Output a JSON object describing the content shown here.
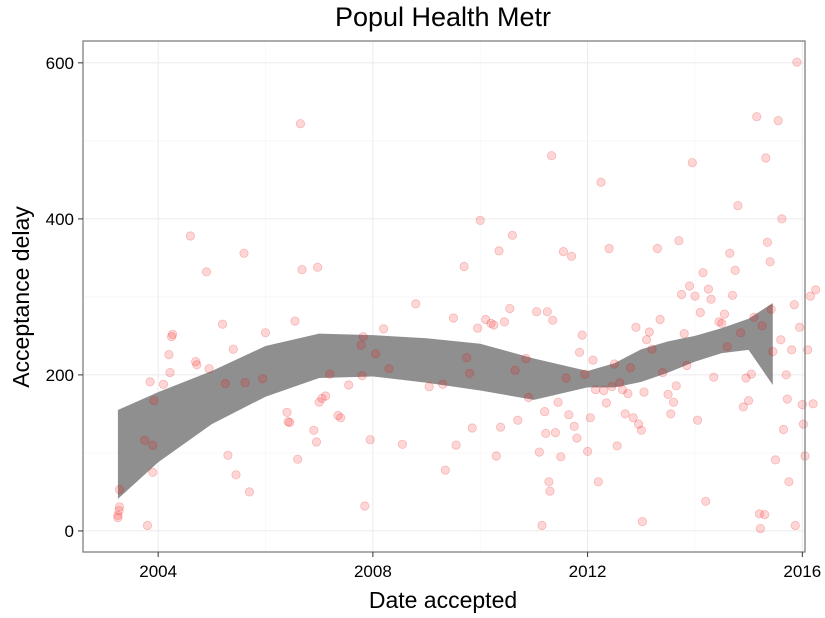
{
  "chart_data": {
    "type": "scatter",
    "title": "Popul Health Metr",
    "xlabel": "Date accepted",
    "ylabel": "Acceptance delay",
    "xlim": [
      2002.6,
      2016.05
    ],
    "ylim": [
      -27,
      628
    ],
    "x_ticks": [
      2004,
      2008,
      2012,
      2016
    ],
    "y_ticks": [
      0,
      200,
      400,
      600
    ],
    "grid": true,
    "legend": "none",
    "colors": {
      "point": "#ff0000",
      "band": "#8f8f8f",
      "border": "#7f7f7f"
    },
    "points": [
      [
        2003.25,
        17
      ],
      [
        2003.25,
        20
      ],
      [
        2003.27,
        26
      ],
      [
        2003.28,
        31
      ],
      [
        2003.28,
        53
      ],
      [
        2003.75,
        116
      ],
      [
        2003.8,
        7
      ],
      [
        2003.85,
        191
      ],
      [
        2003.9,
        110
      ],
      [
        2003.9,
        75
      ],
      [
        2003.92,
        167
      ],
      [
        2004.1,
        188
      ],
      [
        2004.2,
        226
      ],
      [
        2004.22,
        203
      ],
      [
        2004.25,
        249
      ],
      [
        2004.27,
        252
      ],
      [
        2004.6,
        378
      ],
      [
        2004.7,
        217
      ],
      [
        2004.72,
        213
      ],
      [
        2004.9,
        332
      ],
      [
        2004.95,
        208
      ],
      [
        2005.2,
        265
      ],
      [
        2005.25,
        189
      ],
      [
        2005.3,
        97
      ],
      [
        2005.4,
        233
      ],
      [
        2005.45,
        72
      ],
      [
        2005.6,
        356
      ],
      [
        2005.62,
        190
      ],
      [
        2005.7,
        50
      ],
      [
        2005.95,
        195
      ],
      [
        2006.0,
        254
      ],
      [
        2006.4,
        152
      ],
      [
        2006.42,
        140
      ],
      [
        2006.45,
        139
      ],
      [
        2006.55,
        269
      ],
      [
        2006.6,
        92
      ],
      [
        2006.65,
        522
      ],
      [
        2006.68,
        335
      ],
      [
        2006.9,
        129
      ],
      [
        2006.95,
        114
      ],
      [
        2006.97,
        338
      ],
      [
        2007.0,
        165
      ],
      [
        2007.05,
        170
      ],
      [
        2007.12,
        173
      ],
      [
        2007.2,
        201
      ],
      [
        2007.35,
        148
      ],
      [
        2007.4,
        145
      ],
      [
        2007.55,
        187
      ],
      [
        2007.78,
        238
      ],
      [
        2007.8,
        199
      ],
      [
        2007.82,
        249
      ],
      [
        2007.85,
        32
      ],
      [
        2007.95,
        117
      ],
      [
        2008.05,
        227
      ],
      [
        2008.2,
        259
      ],
      [
        2008.3,
        208
      ],
      [
        2008.55,
        111
      ],
      [
        2008.8,
        291
      ],
      [
        2009.05,
        185
      ],
      [
        2009.3,
        188
      ],
      [
        2009.35,
        78
      ],
      [
        2009.5,
        273
      ],
      [
        2009.55,
        110
      ],
      [
        2009.7,
        339
      ],
      [
        2009.75,
        222
      ],
      [
        2009.8,
        202
      ],
      [
        2009.85,
        132
      ],
      [
        2009.95,
        260
      ],
      [
        2010.0,
        398
      ],
      [
        2010.1,
        271
      ],
      [
        2010.2,
        266
      ],
      [
        2010.25,
        264
      ],
      [
        2010.3,
        96
      ],
      [
        2010.35,
        359
      ],
      [
        2010.38,
        133
      ],
      [
        2010.45,
        268
      ],
      [
        2010.55,
        285
      ],
      [
        2010.6,
        379
      ],
      [
        2010.65,
        206
      ],
      [
        2010.7,
        142
      ],
      [
        2010.85,
        221
      ],
      [
        2010.9,
        171
      ],
      [
        2011.05,
        281
      ],
      [
        2011.1,
        101
      ],
      [
        2011.15,
        7
      ],
      [
        2011.2,
        153
      ],
      [
        2011.22,
        125
      ],
      [
        2011.25,
        281
      ],
      [
        2011.28,
        63
      ],
      [
        2011.3,
        51
      ],
      [
        2011.33,
        481
      ],
      [
        2011.35,
        270
      ],
      [
        2011.4,
        126
      ],
      [
        2011.45,
        165
      ],
      [
        2011.5,
        95
      ],
      [
        2011.55,
        358
      ],
      [
        2011.6,
        196
      ],
      [
        2011.65,
        149
      ],
      [
        2011.7,
        352
      ],
      [
        2011.75,
        134
      ],
      [
        2011.8,
        119
      ],
      [
        2011.85,
        229
      ],
      [
        2011.9,
        251
      ],
      [
        2011.95,
        201
      ],
      [
        2012.0,
        102
      ],
      [
        2012.05,
        145
      ],
      [
        2012.1,
        219
      ],
      [
        2012.15,
        181
      ],
      [
        2012.2,
        63
      ],
      [
        2012.25,
        447
      ],
      [
        2012.3,
        180
      ],
      [
        2012.35,
        164
      ],
      [
        2012.4,
        362
      ],
      [
        2012.45,
        185
      ],
      [
        2012.5,
        214
      ],
      [
        2012.55,
        109
      ],
      [
        2012.6,
        190
      ],
      [
        2012.65,
        181
      ],
      [
        2012.7,
        150
      ],
      [
        2012.75,
        176
      ],
      [
        2012.8,
        209
      ],
      [
        2012.85,
        145
      ],
      [
        2012.9,
        261
      ],
      [
        2012.95,
        137
      ],
      [
        2013.0,
        129
      ],
      [
        2013.02,
        12
      ],
      [
        2013.05,
        178
      ],
      [
        2013.1,
        245
      ],
      [
        2013.15,
        255
      ],
      [
        2013.2,
        233
      ],
      [
        2013.3,
        362
      ],
      [
        2013.35,
        271
      ],
      [
        2013.4,
        203
      ],
      [
        2013.5,
        175
      ],
      [
        2013.55,
        150
      ],
      [
        2013.6,
        165
      ],
      [
        2013.65,
        186
      ],
      [
        2013.7,
        372
      ],
      [
        2013.75,
        303
      ],
      [
        2013.8,
        253
      ],
      [
        2013.85,
        212
      ],
      [
        2013.9,
        314
      ],
      [
        2013.95,
        472
      ],
      [
        2014.0,
        301
      ],
      [
        2014.05,
        142
      ],
      [
        2014.1,
        280
      ],
      [
        2014.15,
        331
      ],
      [
        2014.2,
        38
      ],
      [
        2014.25,
        310
      ],
      [
        2014.3,
        297
      ],
      [
        2014.35,
        197
      ],
      [
        2014.45,
        268
      ],
      [
        2014.5,
        266
      ],
      [
        2014.55,
        278
      ],
      [
        2014.6,
        236
      ],
      [
        2014.65,
        356
      ],
      [
        2014.7,
        302
      ],
      [
        2014.75,
        334
      ],
      [
        2014.8,
        417
      ],
      [
        2014.85,
        254
      ],
      [
        2014.9,
        159
      ],
      [
        2014.95,
        196
      ],
      [
        2015.0,
        167
      ],
      [
        2015.05,
        201
      ],
      [
        2015.1,
        274
      ],
      [
        2015.15,
        531
      ],
      [
        2015.2,
        22
      ],
      [
        2015.22,
        3
      ],
      [
        2015.25,
        263
      ],
      [
        2015.3,
        21
      ],
      [
        2015.32,
        478
      ],
      [
        2015.35,
        370
      ],
      [
        2015.4,
        345
      ],
      [
        2015.42,
        284
      ],
      [
        2015.45,
        230
      ],
      [
        2015.5,
        91
      ],
      [
        2015.55,
        526
      ],
      [
        2015.6,
        245
      ],
      [
        2015.62,
        400
      ],
      [
        2015.65,
        130
      ],
      [
        2015.7,
        200
      ],
      [
        2015.72,
        169
      ],
      [
        2015.75,
        63
      ],
      [
        2015.8,
        232
      ],
      [
        2015.85,
        290
      ],
      [
        2015.87,
        7
      ],
      [
        2015.9,
        601
      ],
      [
        2015.95,
        261
      ],
      [
        2016.0,
        162
      ],
      [
        2016.02,
        137
      ],
      [
        2016.05,
        96
      ],
      [
        2016.1,
        232
      ],
      [
        2016.15,
        301
      ],
      [
        2016.2,
        163
      ],
      [
        2016.25,
        309
      ]
    ],
    "smooth_band": {
      "x": [
        2003.25,
        2004.0,
        2005.0,
        2006.0,
        2007.0,
        2008.0,
        2009.0,
        2010.0,
        2011.0,
        2011.5,
        2012.0,
        2012.5,
        2013.0,
        2013.5,
        2014.0,
        2014.5,
        2015.0,
        2015.45
      ],
      "upper": [
        155,
        178,
        205,
        237,
        253,
        251,
        247,
        240,
        221,
        213,
        205,
        215,
        233,
        243,
        250,
        260,
        272,
        292
      ],
      "lower": [
        41,
        88,
        137,
        172,
        196,
        198,
        190,
        180,
        168,
        176,
        184,
        184,
        191,
        203,
        217,
        228,
        232,
        187
      ]
    }
  }
}
